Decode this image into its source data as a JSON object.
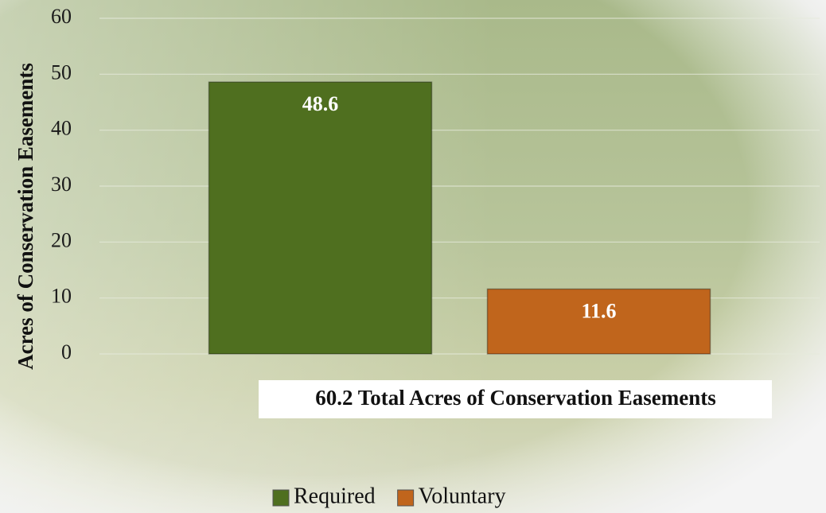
{
  "chart_data": {
    "type": "bar",
    "categories": [
      null
    ],
    "series": [
      {
        "name": "Required",
        "color": "#4f6f1f",
        "values": [
          48.6
        ]
      },
      {
        "name": "Voluntary",
        "color": "#c0651c",
        "values": [
          11.6
        ]
      }
    ],
    "ylabel": "Acres of Conservation Easements",
    "annotation": "60.2 Total Acres of Conservation Easements",
    "ylim": [
      0,
      60
    ],
    "yticks": [
      0,
      10,
      20,
      30,
      40,
      50,
      60
    ],
    "grid": true,
    "legend": "bottom"
  }
}
